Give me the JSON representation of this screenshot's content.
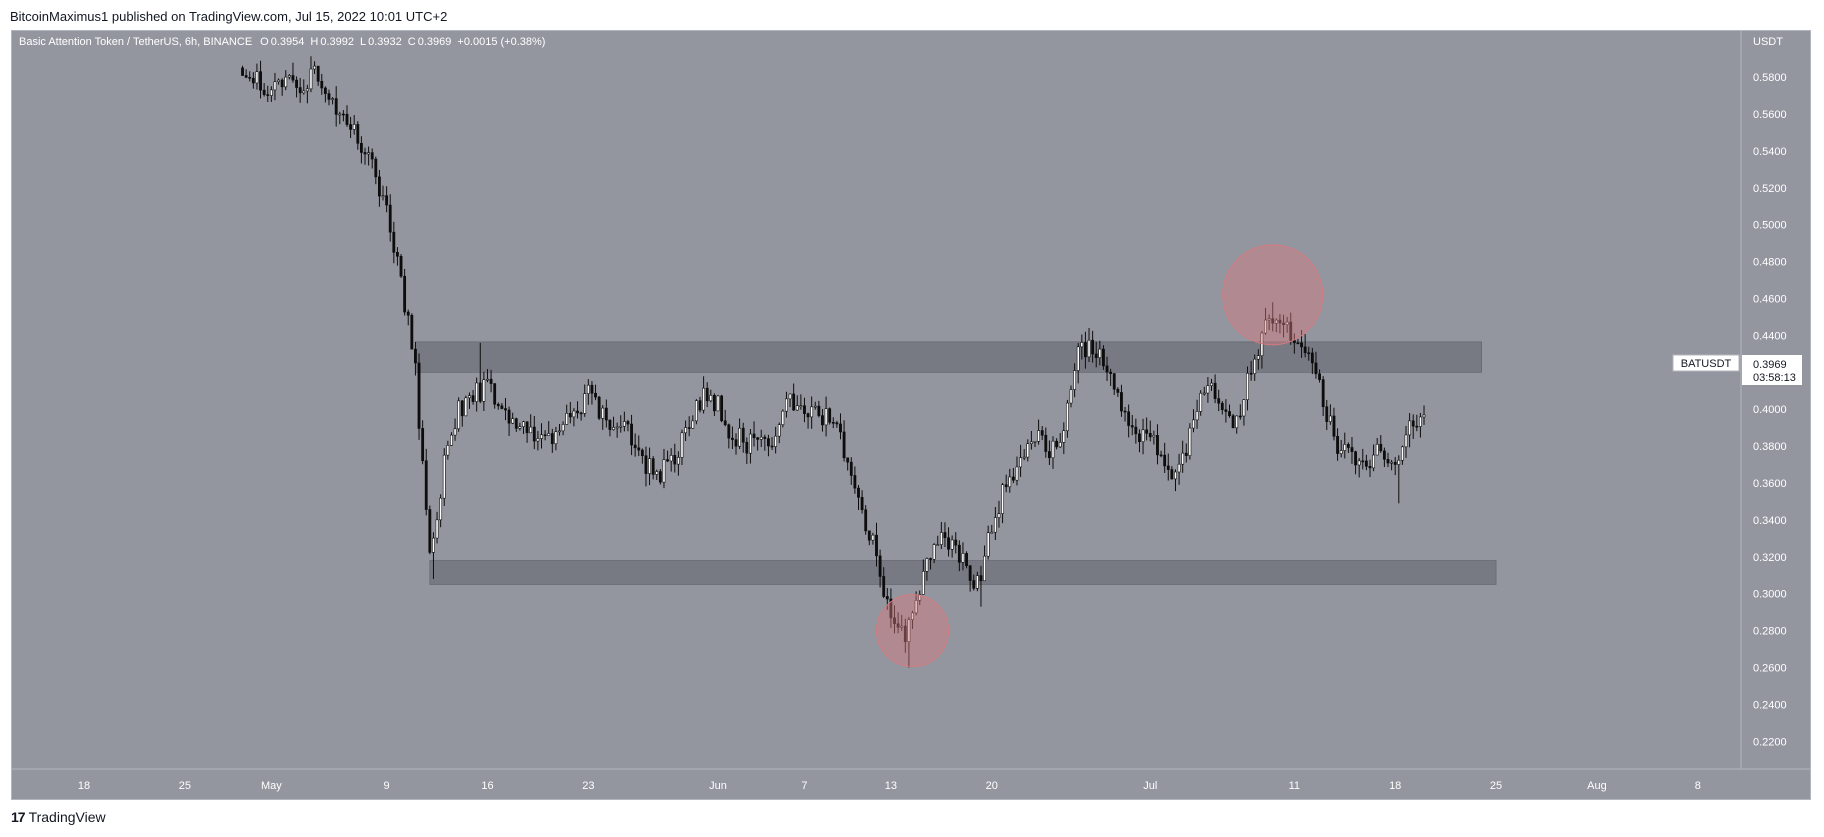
{
  "header": {
    "publisher": "BitcoinMaximus1 published on TradingView.com, Jul 15, 2022 10:01 UTC+2"
  },
  "footer": {
    "brand_mark": "17",
    "brand": "TradingView"
  },
  "legend": {
    "symbol": "Basic Attention Token / TetherUS, 6h, BINANCE",
    "o_label": "O",
    "o_value": "0.3954",
    "h_label": "H",
    "h_value": "0.3992",
    "l_label": "L",
    "l_value": "0.3932",
    "c_label": "C",
    "c_value": "0.3969",
    "change": "+0.0015 (+0.38%)"
  },
  "price_tag": {
    "symbol": "BATUSDT",
    "price": "0.3969",
    "countdown": "03:58:13"
  },
  "colors": {
    "background": "#94969f",
    "frame": "#b2b5be",
    "candle": "#0d0d0d",
    "zone": "#6e7079",
    "circle": "#d47a7f",
    "axis_text": "#ffffff"
  },
  "chart_data": {
    "type": "candlestick",
    "title": "Basic Attention Token / TetherUS, 6h, BINANCE",
    "y_axis_label": "USDT",
    "ylim": [
      0.205,
      0.605
    ],
    "xlim": [
      "2022-04-13",
      "2022-08-11"
    ],
    "y_ticks": [
      "0.5800",
      "0.5600",
      "0.5400",
      "0.5200",
      "0.5000",
      "0.4800",
      "0.4600",
      "0.4400",
      "0.4200",
      "0.4000",
      "0.3800",
      "0.3600",
      "0.3400",
      "0.3200",
      "0.3000",
      "0.2800",
      "0.2600",
      "0.2400",
      "0.2200"
    ],
    "x_ticks": [
      {
        "label": "18",
        "date": "2022-04-18"
      },
      {
        "label": "25",
        "date": "2022-04-25"
      },
      {
        "label": "May",
        "date": "2022-05-01"
      },
      {
        "label": "9",
        "date": "2022-05-09"
      },
      {
        "label": "16",
        "date": "2022-05-16"
      },
      {
        "label": "23",
        "date": "2022-05-23"
      },
      {
        "label": "Jun",
        "date": "2022-06-01"
      },
      {
        "label": "7",
        "date": "2022-06-07"
      },
      {
        "label": "13",
        "date": "2022-06-13"
      },
      {
        "label": "20",
        "date": "2022-06-20"
      },
      {
        "label": "Jul",
        "date": "2022-07-01"
      },
      {
        "label": "11",
        "date": "2022-07-11"
      },
      {
        "label": "18",
        "date": "2022-07-18"
      },
      {
        "label": "25",
        "date": "2022-07-25"
      },
      {
        "label": "Aug",
        "date": "2022-08-01"
      },
      {
        "label": "8",
        "date": "2022-08-08"
      }
    ],
    "close_path": [
      [
        "2022-04-29",
        0.585
      ],
      [
        "2022-04-30",
        0.58
      ],
      [
        "2022-05-01",
        0.572
      ],
      [
        "2022-05-02",
        0.578
      ],
      [
        "2022-05-03",
        0.575
      ],
      [
        "2022-05-04",
        0.58
      ],
      [
        "2022-05-05",
        0.568
      ],
      [
        "2022-05-06",
        0.56
      ],
      [
        "2022-05-07",
        0.545
      ],
      [
        "2022-05-08",
        0.53
      ],
      [
        "2022-05-09",
        0.505
      ],
      [
        "2022-05-10",
        0.47
      ],
      [
        "2022-05-11",
        0.42
      ],
      [
        "2022-05-12",
        0.32
      ],
      [
        "2022-05-13",
        0.37
      ],
      [
        "2022-05-14",
        0.4
      ],
      [
        "2022-05-15",
        0.408
      ],
      [
        "2022-05-16",
        0.412
      ],
      [
        "2022-05-17",
        0.4
      ],
      [
        "2022-05-18",
        0.395
      ],
      [
        "2022-05-19",
        0.388
      ],
      [
        "2022-05-20",
        0.382
      ],
      [
        "2022-05-21",
        0.392
      ],
      [
        "2022-05-22",
        0.398
      ],
      [
        "2022-05-23",
        0.408
      ],
      [
        "2022-05-24",
        0.395
      ],
      [
        "2022-05-25",
        0.392
      ],
      [
        "2022-05-26",
        0.385
      ],
      [
        "2022-05-27",
        0.368
      ],
      [
        "2022-05-28",
        0.366
      ],
      [
        "2022-05-29",
        0.372
      ],
      [
        "2022-05-30",
        0.392
      ],
      [
        "2022-05-31",
        0.41
      ],
      [
        "2022-06-01",
        0.402
      ],
      [
        "2022-06-02",
        0.386
      ],
      [
        "2022-06-03",
        0.382
      ],
      [
        "2022-06-04",
        0.38
      ],
      [
        "2022-06-05",
        0.386
      ],
      [
        "2022-06-06",
        0.405
      ],
      [
        "2022-06-07",
        0.395
      ],
      [
        "2022-06-08",
        0.398
      ],
      [
        "2022-06-09",
        0.392
      ],
      [
        "2022-06-10",
        0.375
      ],
      [
        "2022-06-11",
        0.345
      ],
      [
        "2022-06-12",
        0.32
      ],
      [
        "2022-06-13",
        0.285
      ],
      [
        "2022-06-14",
        0.278
      ],
      [
        "2022-06-15",
        0.305
      ],
      [
        "2022-06-16",
        0.325
      ],
      [
        "2022-06-17",
        0.33
      ],
      [
        "2022-06-18",
        0.318
      ],
      [
        "2022-06-19",
        0.305
      ],
      [
        "2022-06-20",
        0.335
      ],
      [
        "2022-06-21",
        0.36
      ],
      [
        "2022-06-22",
        0.372
      ],
      [
        "2022-06-23",
        0.385
      ],
      [
        "2022-06-24",
        0.375
      ],
      [
        "2022-06-25",
        0.388
      ],
      [
        "2022-06-26",
        0.43
      ],
      [
        "2022-06-27",
        0.435
      ],
      [
        "2022-06-28",
        0.42
      ],
      [
        "2022-06-29",
        0.402
      ],
      [
        "2022-06-30",
        0.388
      ],
      [
        "2022-07-01",
        0.385
      ],
      [
        "2022-07-02",
        0.37
      ],
      [
        "2022-07-03",
        0.365
      ],
      [
        "2022-07-04",
        0.395
      ],
      [
        "2022-07-05",
        0.412
      ],
      [
        "2022-07-06",
        0.398
      ],
      [
        "2022-07-07",
        0.392
      ],
      [
        "2022-07-08",
        0.425
      ],
      [
        "2022-07-09",
        0.445
      ],
      [
        "2022-07-10",
        0.45
      ],
      [
        "2022-07-11",
        0.438
      ],
      [
        "2022-07-12",
        0.432
      ],
      [
        "2022-07-13",
        0.405
      ],
      [
        "2022-07-14",
        0.378
      ],
      [
        "2022-07-15",
        0.372
      ],
      [
        "2022-07-16",
        0.368
      ],
      [
        "2022-07-17",
        0.378
      ],
      [
        "2022-07-18",
        0.365
      ],
      [
        "2022-07-19",
        0.388
      ],
      [
        "2022-07-20",
        0.3969
      ]
    ],
    "last_price": 0.3969,
    "price_range_lows": {
      "2022-05-12": 0.308,
      "2022-06-14": 0.26,
      "2022-06-19": 0.293,
      "2022-07-18": 0.349
    },
    "price_range_highs": {
      "2022-05-15": 0.436,
      "2022-06-26": 0.442,
      "2022-07-09": 0.458
    },
    "zones": [
      {
        "from": "2022-05-11",
        "to": "2022-07-24",
        "low": 0.42,
        "high": 0.4365
      },
      {
        "from": "2022-05-12",
        "to": "2022-07-25",
        "low": 0.305,
        "high": 0.318
      }
    ],
    "circles": [
      {
        "date": "2022-06-14",
        "price": 0.28
      },
      {
        "date": "2022-07-09",
        "price": 0.462
      }
    ],
    "legend_position": "top-left",
    "grid": false
  }
}
